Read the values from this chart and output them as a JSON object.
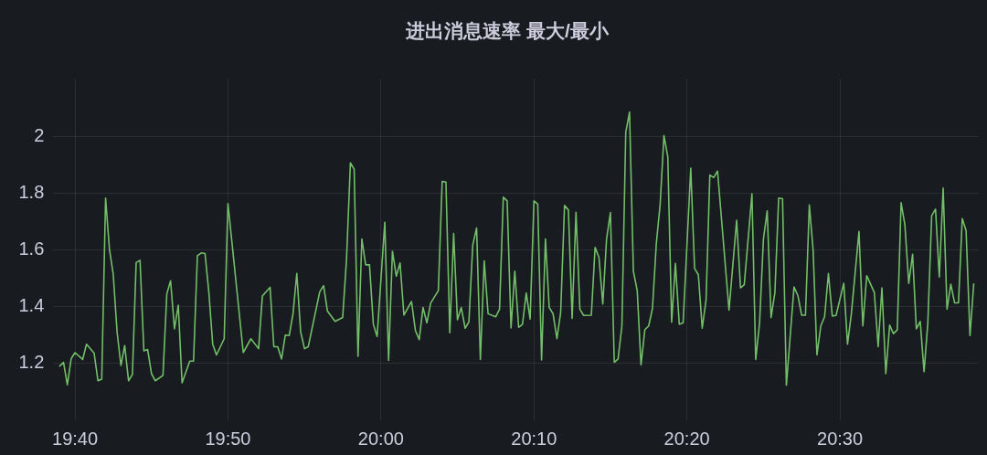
{
  "chart_data": {
    "type": "line",
    "title": "进出消息速率 最大/最小",
    "x": [
      19.65,
      19.6542,
      19.6583,
      19.6625,
      19.6667,
      19.675,
      19.6792,
      19.6875,
      19.6917,
      19.6958,
      19.7,
      19.7042,
      19.7083,
      19.7125,
      19.7167,
      19.7208,
      19.725,
      19.7292,
      19.7333,
      19.7375,
      19.7417,
      19.7458,
      19.75,
      19.7542,
      19.7625,
      19.7667,
      19.7708,
      19.775,
      19.7792,
      19.7833,
      19.7917,
      19.7958,
      19.8,
      19.8042,
      19.8083,
      19.8125,
      19.8167,
      19.8208,
      19.8292,
      19.8333,
      19.85,
      19.8583,
      19.8667,
      19.8708,
      19.8792,
      19.8833,
      19.8875,
      19.8917,
      19.8958,
      19.9,
      19.9042,
      19.9083,
      19.9125,
      19.9167,
      19.9208,
      19.9333,
      19.9375,
      19.9417,
      19.95,
      19.9583,
      19.9625,
      19.9667,
      19.9708,
      19.975,
      19.9792,
      19.9833,
      19.9875,
      19.9917,
      19.9958,
      20.0042,
      20.0083,
      20.0125,
      20.0167,
      20.0208,
      20.025,
      20.0333,
      20.0375,
      20.0417,
      20.0458,
      20.05,
      20.0542,
      20.0625,
      20.0667,
      20.0708,
      20.075,
      20.0792,
      20.0833,
      20.0875,
      20.0917,
      20.0958,
      20.1,
      20.1042,
      20.1083,
      20.1125,
      20.1167,
      20.125,
      20.1292,
      20.1333,
      20.1375,
      20.1417,
      20.1458,
      20.15,
      20.1542,
      20.1583,
      20.1625,
      20.1667,
      20.1708,
      20.175,
      20.1792,
      20.1833,
      20.1875,
      20.1917,
      20.1958,
      20.2,
      20.2042,
      20.2083,
      20.2125,
      20.2167,
      20.2208,
      20.2292,
      20.2333,
      20.2375,
      20.2417,
      20.2458,
      20.25,
      20.2542,
      20.2583,
      20.2625,
      20.2667,
      20.2708,
      20.275,
      20.2792,
      20.2833,
      20.2875,
      20.2917,
      20.2958,
      20.3,
      20.3042,
      20.3083,
      20.3125,
      20.3167,
      20.3208,
      20.325,
      20.3292,
      20.3375,
      20.3417,
      20.3458,
      20.35,
      20.3542,
      20.3583,
      20.3625,
      20.3667,
      20.3792,
      20.3875,
      20.3917,
      20.3958,
      20.4042,
      20.4083,
      20.4125,
      20.4167,
      20.4208,
      20.425,
      20.4292,
      20.4333,
      20.4375,
      20.4417,
      20.45,
      20.4542,
      20.4583,
      20.4625,
      20.4667,
      20.4708,
      20.475,
      20.4792,
      20.4833,
      20.4875,
      20.4917,
      20.4958,
      20.5042,
      20.5083,
      20.5125,
      20.5208,
      20.525,
      20.5292,
      20.5375,
      20.5417,
      20.5458,
      20.55,
      20.5542,
      20.5583,
      20.5625,
      20.5667,
      20.5708,
      20.575,
      20.5792,
      20.5833,
      20.5875,
      20.5917,
      20.5958,
      20.6,
      20.6042,
      20.6083,
      20.6125,
      20.6167,
      20.6208,
      20.625,
      20.6292,
      20.6333,
      20.6375,
      20.6417,
      20.6458
    ],
    "values": [
      1.191,
      1.204,
      1.125,
      1.217,
      1.238,
      1.214,
      1.268,
      1.236,
      1.139,
      1.145,
      1.782,
      1.602,
      1.514,
      1.311,
      1.193,
      1.263,
      1.139,
      1.161,
      1.555,
      1.563,
      1.244,
      1.249,
      1.164,
      1.139,
      1.158,
      1.445,
      1.491,
      1.322,
      1.405,
      1.132,
      1.208,
      1.208,
      1.579,
      1.589,
      1.587,
      1.45,
      1.268,
      1.23,
      1.287,
      1.763,
      1.238,
      1.287,
      1.252,
      1.437,
      1.468,
      1.259,
      1.259,
      1.216,
      1.3,
      1.298,
      1.375,
      1.517,
      1.311,
      1.252,
      1.259,
      1.452,
      1.474,
      1.384,
      1.348,
      1.362,
      1.568,
      1.906,
      1.884,
      1.225,
      1.638,
      1.547,
      1.547,
      1.338,
      1.295,
      1.697,
      1.211,
      1.595,
      1.507,
      1.554,
      1.37,
      1.418,
      1.316,
      1.284,
      1.397,
      1.343,
      1.413,
      1.456,
      1.841,
      1.838,
      1.308,
      1.657,
      1.354,
      1.397,
      1.324,
      1.346,
      1.616,
      1.677,
      1.214,
      1.561,
      1.375,
      1.364,
      1.391,
      1.785,
      1.772,
      1.325,
      1.525,
      1.327,
      1.338,
      1.448,
      1.356,
      1.772,
      1.761,
      1.212,
      1.638,
      1.397,
      1.375,
      1.287,
      1.38,
      1.756,
      1.74,
      1.359,
      1.732,
      1.391,
      1.369,
      1.37,
      1.608,
      1.573,
      1.409,
      1.638,
      1.731,
      1.204,
      1.216,
      1.332,
      2.013,
      2.085,
      1.525,
      1.456,
      1.195,
      1.319,
      1.332,
      1.394,
      1.622,
      1.761,
      2.002,
      1.927,
      1.345,
      1.552,
      1.338,
      1.343,
      1.887,
      1.534,
      1.512,
      1.324,
      1.423,
      1.863,
      1.854,
      1.877,
      1.388,
      1.704,
      1.466,
      1.477,
      1.797,
      1.214,
      1.343,
      1.638,
      1.737,
      1.361,
      1.45,
      1.782,
      1.78,
      1.123,
      1.469,
      1.439,
      1.37,
      1.37,
      1.758,
      1.6,
      1.23,
      1.332,
      1.364,
      1.517,
      1.367,
      1.369,
      1.482,
      1.268,
      1.375,
      1.665,
      1.332,
      1.509,
      1.45,
      1.259,
      1.466,
      1.164,
      1.335,
      1.305,
      1.318,
      1.766,
      1.688,
      1.482,
      1.584,
      1.322,
      1.348,
      1.171,
      1.343,
      1.72,
      1.743,
      1.504,
      1.817,
      1.391,
      1.479,
      1.413,
      1.413,
      1.71,
      1.667,
      1.298,
      1.48
    ],
    "color": "#73bf69",
    "xlim": [
      19.643,
      20.651
    ],
    "xticks": [
      {
        "value": 19.6667,
        "label": "19:40"
      },
      {
        "value": 19.8333,
        "label": "19:50"
      },
      {
        "value": 20,
        "label": "20:00"
      },
      {
        "value": 20.1667,
        "label": "20:10"
      },
      {
        "value": 20.3333,
        "label": "20:20"
      },
      {
        "value": 20.5,
        "label": "20:30"
      }
    ],
    "ylim": [
      1.0,
      2.2
    ],
    "yticks": [
      1.2,
      1.4,
      1.6,
      1.8,
      2
    ],
    "grid": true
  }
}
